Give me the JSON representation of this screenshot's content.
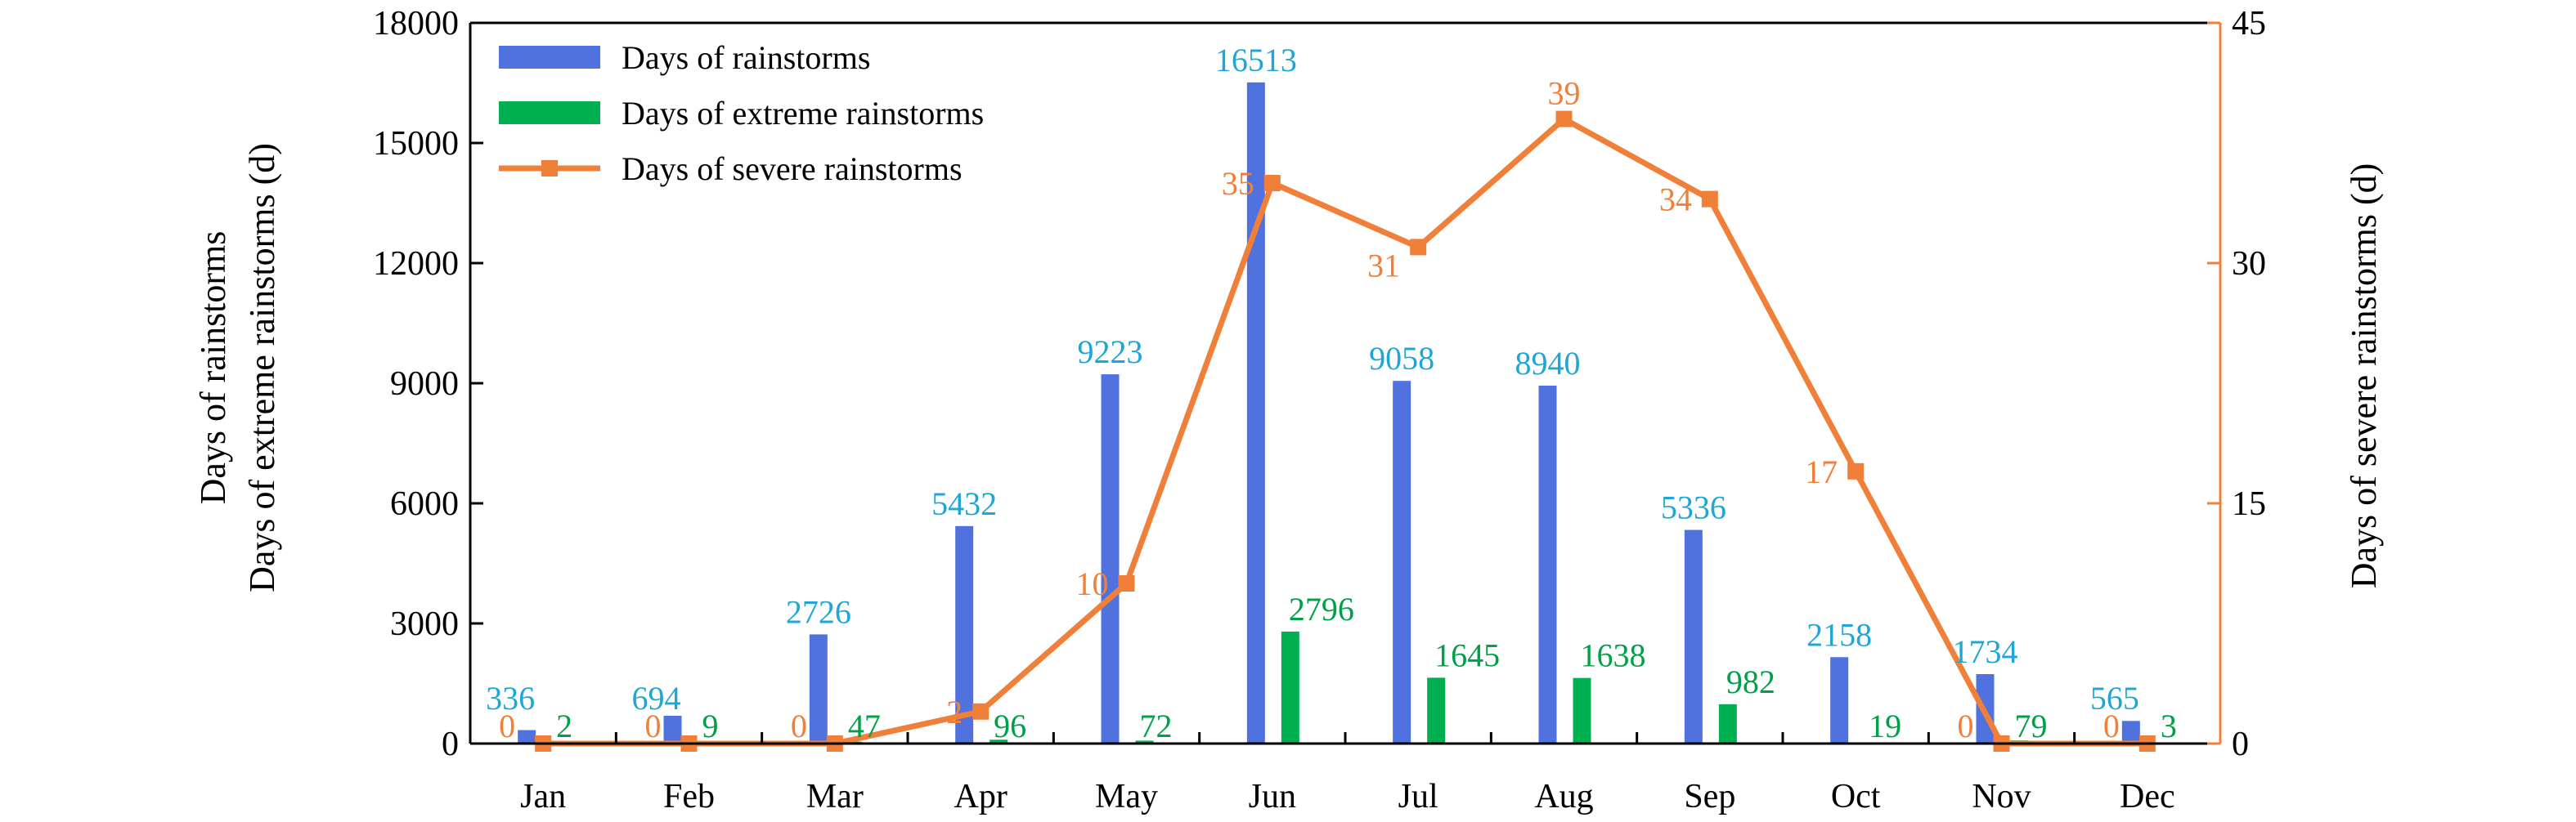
{
  "chart_data": {
    "type": "bar",
    "categories": [
      "Jan",
      "Feb",
      "Mar",
      "Apr",
      "May",
      "Jun",
      "Jul",
      "Aug",
      "Sep",
      "Oct",
      "Nov",
      "Dec"
    ],
    "series": [
      {
        "name": "Days of rainstorms",
        "type": "bar",
        "axis": "left",
        "color": "#4f72df",
        "values": [
          336,
          694,
          2726,
          5432,
          9223,
          16513,
          9058,
          8940,
          5336,
          2158,
          1734,
          565
        ],
        "label_color": "#1ea7d6"
      },
      {
        "name": "Days of extreme rainstorms",
        "type": "bar",
        "axis": "left",
        "color": "#00b050",
        "values": [
          2,
          9,
          47,
          96,
          72,
          2796,
          1645,
          1638,
          982,
          19,
          79,
          3
        ],
        "label_color": "#00a049"
      },
      {
        "name": "Days of severe rainstorms",
        "type": "line",
        "axis": "right",
        "color": "#f07f3a",
        "values": [
          0,
          0,
          0,
          2,
          10,
          35,
          31,
          39,
          34,
          17,
          0,
          0
        ],
        "label_color": "#f07f3a"
      }
    ],
    "ylabel_left": [
      "Days of rainstorms",
      "Days of extreme rainstorms (d)"
    ],
    "ylabel_right": "Days of severe rainstorms (d)",
    "ylim_left": [
      0,
      18000
    ],
    "yticks_left": [
      0,
      3000,
      6000,
      9000,
      12000,
      15000,
      18000
    ],
    "ylim_right": [
      0,
      45
    ],
    "yticks_right": [
      0,
      15,
      30,
      45
    ],
    "grid": false,
    "legend_position": "top-left"
  }
}
